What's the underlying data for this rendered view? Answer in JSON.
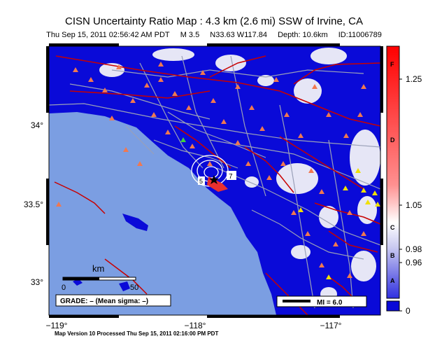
{
  "title": "CISN Uncertainty Ratio Map : 4.3 km (2.6 mi) SSW of Irvine, CA",
  "subtitle": {
    "datetime": "Thu Sep 15, 2011 02:56:42 AM PDT",
    "magnitude": "M 3.5",
    "location": "N33.63 W117.84",
    "depth": "Depth: 10.6km",
    "id": "ID:11006789"
  },
  "footer": "Map Version 10 Processed Thu Sep 15, 2011 02:16:00 PM PDT",
  "axes": {
    "y_ticks": [
      "34°",
      "33.5°",
      "33°"
    ],
    "x_ticks": [
      "−119°",
      "−118°",
      "−117°"
    ]
  },
  "scale_bar": {
    "unit": "km",
    "start": "0",
    "end": "50"
  },
  "grade_box": "GRADE: – (Mean sigma: –)",
  "mi_box": "MI = 6.0",
  "contour_labels": [
    "7",
    "5"
  ],
  "colorbar": {
    "ticks": [
      "1.25",
      "1.05",
      "0.98",
      "0.96",
      "0"
    ],
    "grades": [
      "F",
      "D",
      "C",
      "B",
      "A"
    ]
  },
  "colors": {
    "ocean": "#7b9ee2",
    "land_low": "#0a0ad8",
    "land_gap": "#e6e6f6",
    "fault": "#c80000",
    "road": "#9aa0b8",
    "station": "#f07850"
  }
}
